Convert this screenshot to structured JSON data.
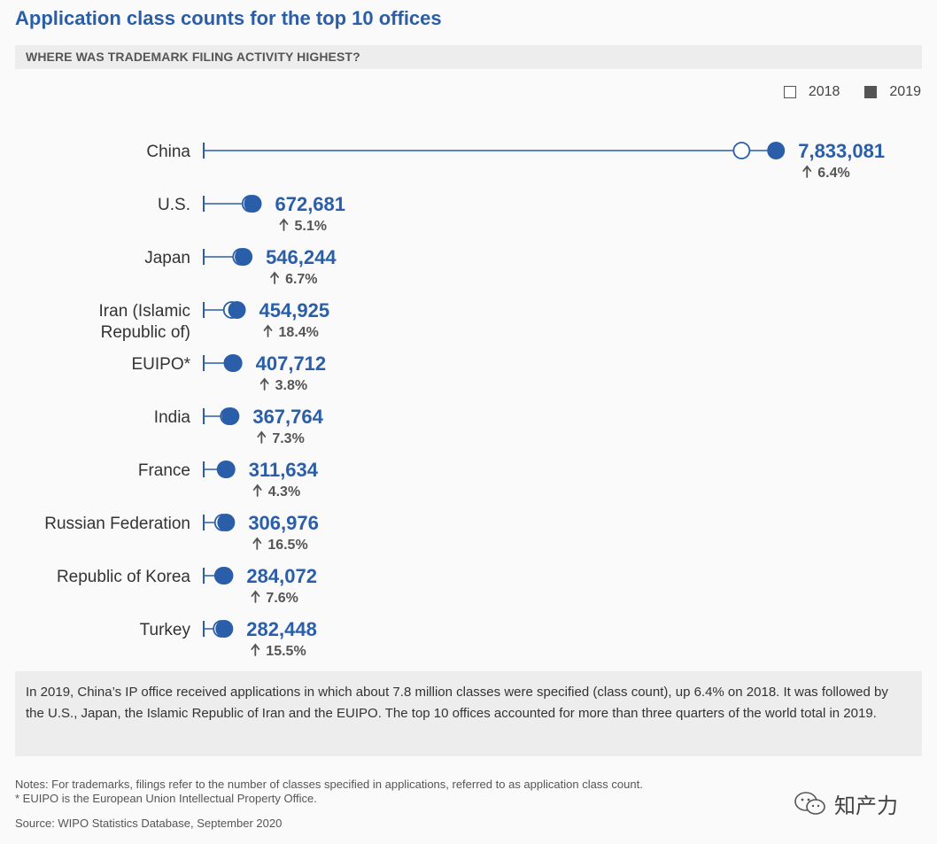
{
  "title": "Application class counts for the top 10 offices",
  "subtitle": "WHERE WAS TRADEMARK FILING ACTIVITY HIGHEST?",
  "legend": {
    "series_2018": "2018",
    "series_2019": "2019"
  },
  "chart_data": {
    "type": "dumbbell",
    "title": "Application class counts for the top 10 offices",
    "series": [
      {
        "name": "2018",
        "marker": "open-circle"
      },
      {
        "name": "2019",
        "marker": "filled-circle"
      }
    ],
    "categories": [
      "China",
      "U.S.",
      "Japan",
      "Iran (Islamic Republic of)",
      "EUIPO*",
      "India",
      "France",
      "Russian Federation",
      "Republic of Korea",
      "Turkey"
    ],
    "values_2019": [
      7833081,
      672681,
      546244,
      454925,
      407712,
      367764,
      311634,
      306976,
      284072,
      282448
    ],
    "values_2019_labels": [
      "7,833,081",
      "672,681",
      "546,244",
      "454,925",
      "407,712",
      "367,764",
      "311,634",
      "306,976",
      "284,072",
      "282,448"
    ],
    "growth_labels": [
      "6.4%",
      "5.1%",
      "6.7%",
      "18.4%",
      "3.8%",
      "7.3%",
      "4.3%",
      "16.5%",
      "7.6%",
      "15.5%"
    ],
    "growth_pct": [
      6.4,
      5.1,
      6.7,
      18.4,
      3.8,
      7.3,
      4.3,
      16.5,
      7.6,
      15.5
    ],
    "colors": {
      "accent": "#2a5ea8",
      "growth_text": "#555555"
    }
  },
  "note": "In 2019, China’s IP office received applications in which about 7.8 million classes were specified (class count), up 6.4% on 2018. It was followed by the U.S., Japan, the Islamic Republic of Iran and the EUIPO. The top 10 offices accounted for more than three quarters of the world total in 2019.",
  "footnote_1": "Notes: For trademarks, filings refer to the number of classes specified in applications, referred to as application class count.",
  "footnote_2": "* EUIPO is the European Union Intellectual Property Office.",
  "source": "Source: WIPO Statistics Database, September 2020",
  "watermark": "知产力"
}
